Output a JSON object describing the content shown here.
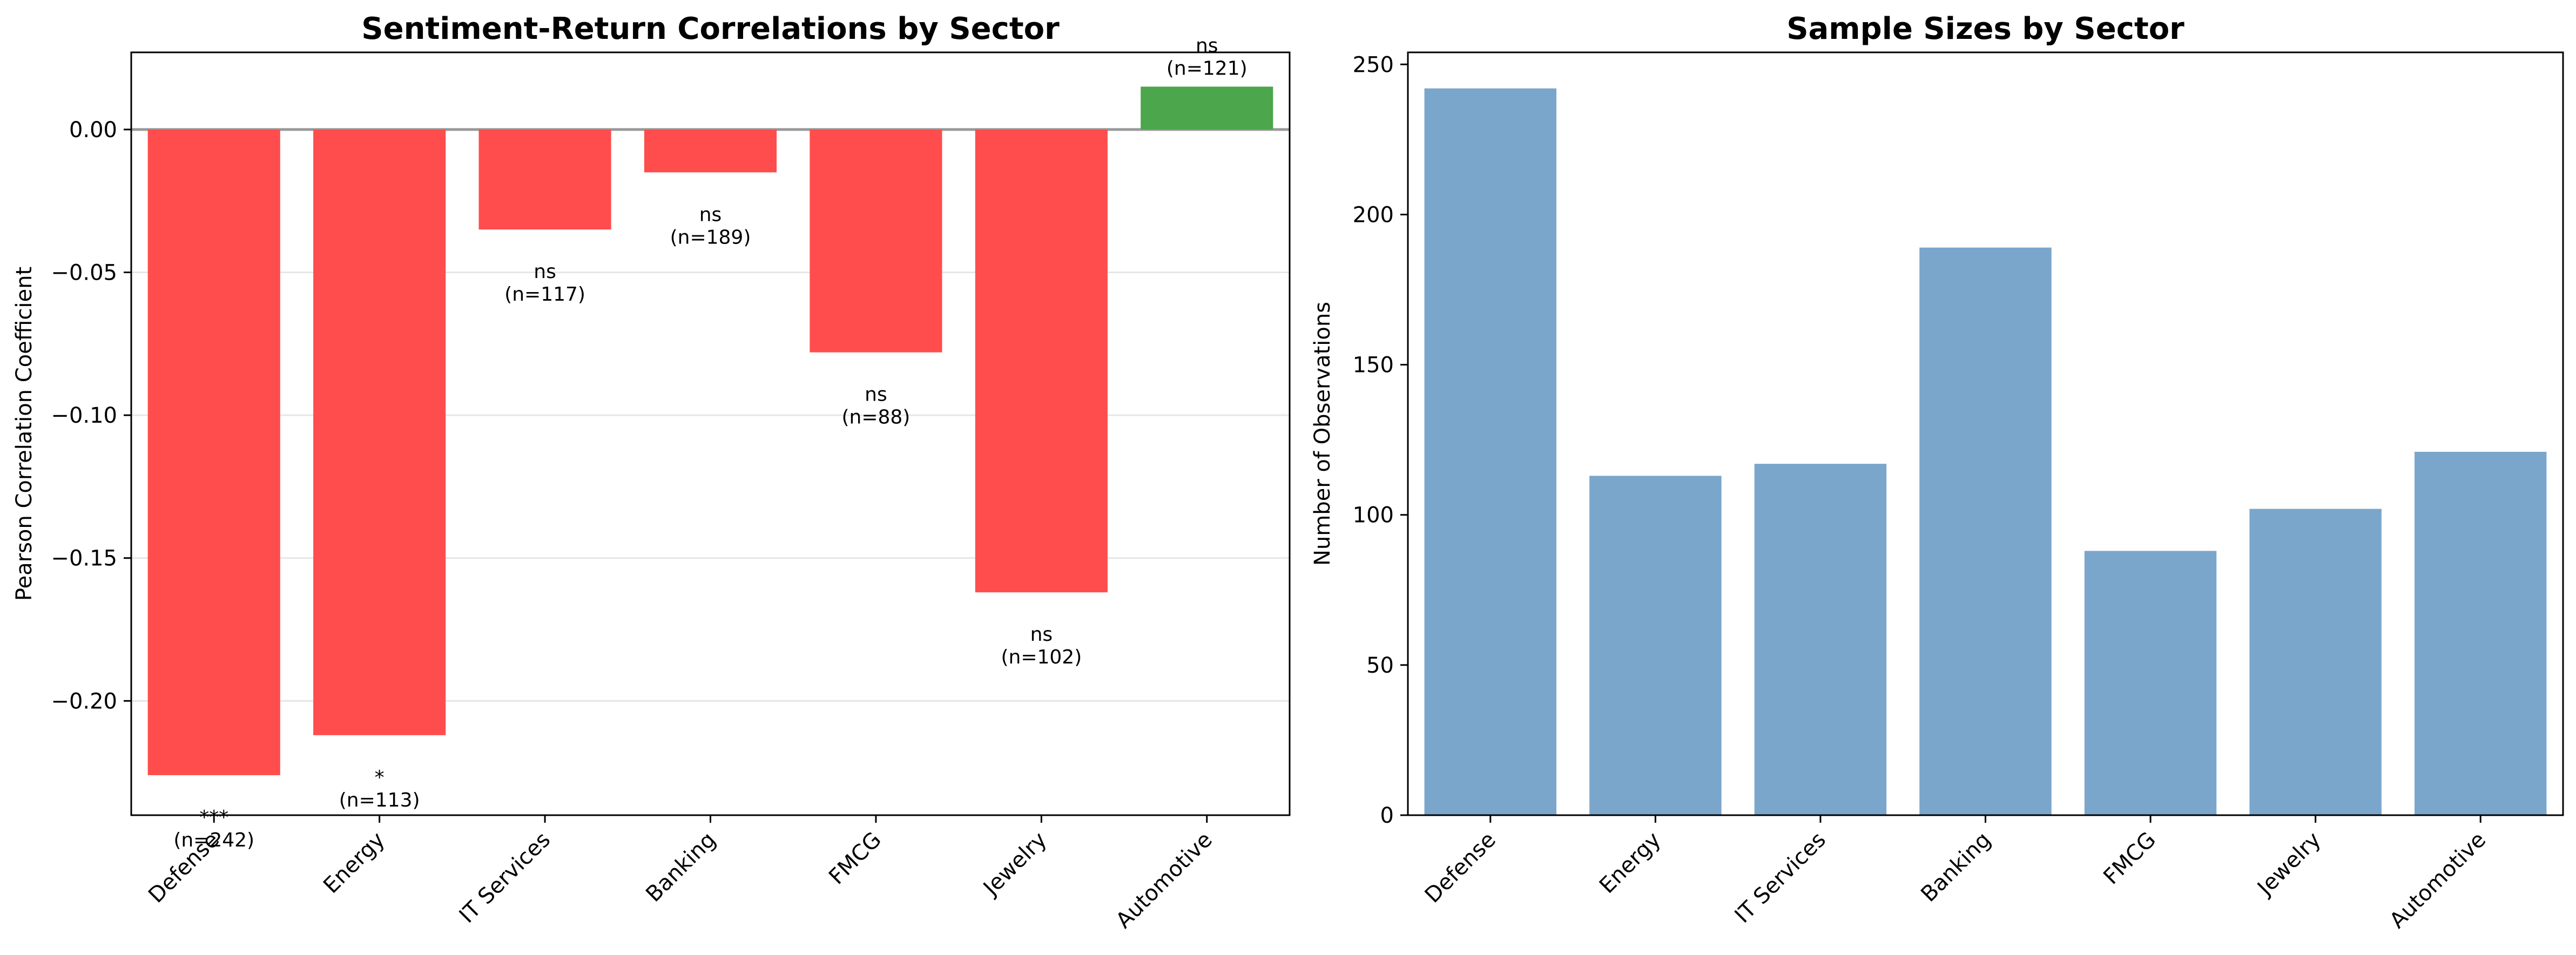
{
  "chart_data": [
    {
      "type": "bar",
      "title": "Sentiment-Return Correlations by Sector",
      "xlabel": "",
      "ylabel": "Pearson Correlation Coefficient",
      "categories": [
        "Defense",
        "Energy",
        "IT Services",
        "Banking",
        "FMCG",
        "Jewelry",
        "Automotive"
      ],
      "values": [
        -0.226,
        -0.212,
        -0.035,
        -0.015,
        -0.078,
        -0.162,
        0.015
      ],
      "significance": [
        "***",
        "*",
        "ns",
        "ns",
        "ns",
        "ns",
        "ns"
      ],
      "sample_labels": [
        "(n=242)",
        "(n=113)",
        "(n=117)",
        "(n=189)",
        "(n=88)",
        "(n=102)",
        "(n=121)"
      ],
      "ylim": [
        -0.24,
        0.027
      ],
      "yticks": [
        0.0,
        -0.05,
        -0.1,
        -0.15,
        -0.2
      ],
      "ytick_labels": [
        "0.00",
        "−0.05",
        "−0.10",
        "−0.15",
        "−0.20"
      ],
      "grid": "y",
      "colors": {
        "negative": "#ff4d4d",
        "positive": "#4ca64c",
        "zero_line": "#999999",
        "grid": "#e6e6e6"
      }
    },
    {
      "type": "bar",
      "title": "Sample Sizes by Sector",
      "xlabel": "",
      "ylabel": "Number of Observations",
      "categories": [
        "Defense",
        "Energy",
        "IT Services",
        "Banking",
        "FMCG",
        "Jewelry",
        "Automotive"
      ],
      "values": [
        242,
        113,
        117,
        189,
        88,
        102,
        121
      ],
      "ylim": [
        0,
        254
      ],
      "yticks": [
        0,
        50,
        100,
        150,
        200,
        250
      ],
      "ytick_labels": [
        "0",
        "50",
        "100",
        "150",
        "200",
        "250"
      ],
      "grid": "none",
      "colors": {
        "bar": "#7ba6cb"
      }
    }
  ]
}
